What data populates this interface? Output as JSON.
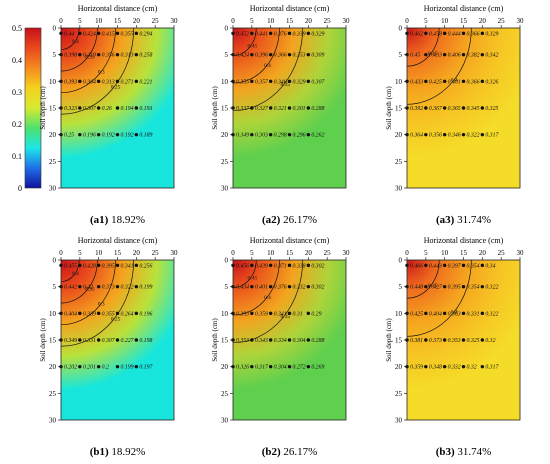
{
  "colorbar": {
    "ticks": [
      "0.5",
      "0.4",
      "0.3",
      "0.2",
      "0.1",
      "0"
    ],
    "ylabel": "Soil depth  (cm)",
    "stops": [
      "#c8101a",
      "#e8491c",
      "#f58a1f",
      "#f5d21e",
      "#d6ea33",
      "#4fe16c",
      "#1ce6e6",
      "#1f6fe9",
      "#12139c"
    ]
  },
  "chart_data": [
    {
      "type": "heatmap",
      "id": "a1",
      "title": "Horizontal distance  (cm)",
      "ylabel": "Soil depth  (cm)",
      "caption_tag": "(a1)",
      "caption_value": "18.92%",
      "xticks": [
        "0",
        "5",
        "10",
        "15",
        "20",
        "25",
        "30"
      ],
      "yticks": [
        "0",
        "5",
        "10",
        "15",
        "20",
        "25",
        "30"
      ],
      "xlim": [
        0,
        30
      ],
      "ylim": [
        0,
        30
      ],
      "background": "#18e6dc",
      "contour_levels": [
        "0.4",
        "0.35",
        "0.3",
        "0.25"
      ],
      "x": [
        0,
        5,
        10,
        15,
        20
      ],
      "depths": [
        1,
        5,
        10,
        15,
        20
      ],
      "values": [
        [
          "0.44",
          "0.424",
          "0.415",
          "0.355",
          "0.294"
        ],
        [
          "0.398",
          "0.419",
          "0.356",
          "0.313",
          "0.258"
        ],
        [
          "0.393",
          "0.364",
          "0.313",
          "0.271",
          "0.221"
        ],
        [
          "0.323",
          "0.307",
          "0.26",
          "0.194",
          "0.193"
        ],
        [
          "0.25",
          "0.196",
          "0.192",
          "0.192",
          "0.189"
        ]
      ]
    },
    {
      "type": "heatmap",
      "id": "a2",
      "title": "Horizontal distance  (cm)",
      "ylabel": "Soil depth  (cm)",
      "caption_tag": "(a2)",
      "caption_value": "26.17%",
      "xticks": [
        "0",
        "5",
        "10",
        "15",
        "20",
        "25",
        "30"
      ],
      "yticks": [
        "0",
        "5",
        "10",
        "15",
        "20",
        "25",
        "30"
      ],
      "xlim": [
        0,
        30
      ],
      "ylim": [
        0,
        30
      ],
      "background": "#5ed04e",
      "contour_levels": [
        "0.45",
        "0.4",
        "0.35"
      ],
      "x": [
        0,
        5,
        10,
        15,
        20
      ],
      "depths": [
        1,
        5,
        10,
        15,
        20
      ],
      "values": [
        [
          "0.452",
          "0.441",
          "0.376",
          "0.339",
          "0.329"
        ],
        [
          "0.424",
          "0.396",
          "0.366",
          "0.353",
          "0.309"
        ],
        [
          "0.355",
          "0.357",
          "0.346",
          "0.329",
          "0.307"
        ],
        [
          "0.337",
          "0.327",
          "0.321",
          "0.301",
          "0.288"
        ],
        [
          "0.349",
          "0.303",
          "0.298",
          "0.296",
          "0.262"
        ]
      ]
    },
    {
      "type": "heatmap",
      "id": "a3",
      "title": "Horizontal distance  (cm)",
      "ylabel": "Soil depth  (cm)",
      "caption_tag": "(a3)",
      "caption_value": "31.74%",
      "xticks": [
        "0",
        "5",
        "10",
        "15",
        "20",
        "25",
        "30"
      ],
      "yticks": [
        "0",
        "5",
        "10",
        "15",
        "20",
        "25",
        "30"
      ],
      "xlim": [
        0,
        30
      ],
      "ylim": [
        0,
        30
      ],
      "background": "#f5dc28",
      "contour_levels": [
        "0.45",
        "0.4"
      ],
      "x": [
        0,
        5,
        10,
        15,
        20
      ],
      "depths": [
        1,
        5,
        10,
        15,
        20
      ],
      "values": [
        [
          "0.462",
          "0.458",
          "0.444",
          "0.366",
          "0.329"
        ],
        [
          "0.45",
          "0.433",
          "0.406",
          "0.382",
          "0.342"
        ],
        [
          "0.433",
          "0.425",
          "0.401",
          "0.366",
          "0.326"
        ],
        [
          "0.392",
          "0.367",
          "0.365",
          "0.345",
          "0.325"
        ],
        [
          "0.364",
          "0.356",
          "0.346",
          "0.322",
          "0.317"
        ]
      ]
    },
    {
      "type": "heatmap",
      "id": "b1",
      "title": "Horizontal distance  (cm)",
      "ylabel": "Soil depth  (cm)",
      "caption_tag": "(b1)",
      "caption_value": "18.92%",
      "xticks": [
        "0",
        "5",
        "10",
        "15",
        "20",
        "25",
        "30"
      ],
      "yticks": [
        "0",
        "5",
        "10",
        "15",
        "20",
        "25",
        "30"
      ],
      "xlim": [
        0,
        30
      ],
      "ylim": [
        0,
        30
      ],
      "background": "#18e6dc",
      "contour_levels": [
        "0.4",
        "0.35",
        "0.3",
        "0.25"
      ],
      "x": [
        0,
        5,
        10,
        15,
        20
      ],
      "depths": [
        1,
        5,
        10,
        15,
        20
      ],
      "values": [
        [
          "0.455",
          "0.428",
          "0.395",
          "0.341",
          "0.256"
        ],
        [
          "0.442",
          "0.42",
          "0.373",
          "0.322",
          "0.199"
        ],
        [
          "0.404",
          "0.389",
          "0.355",
          "0.264",
          "0.196"
        ],
        [
          "0.349",
          "0.331",
          "0.307",
          "0.227",
          "0.198"
        ],
        [
          "0.202",
          "0.201",
          "0.2",
          "0.199",
          "0.197"
        ]
      ]
    },
    {
      "type": "heatmap",
      "id": "b2",
      "title": "Horizontal distance  (cm)",
      "ylabel": "Soil depth  (cm)",
      "caption_tag": "(b2)",
      "caption_value": "26.17%",
      "xticks": [
        "0",
        "5",
        "10",
        "15",
        "20",
        "25",
        "30"
      ],
      "yticks": [
        "0",
        "5",
        "10",
        "15",
        "20",
        "25",
        "30"
      ],
      "xlim": [
        0,
        30
      ],
      "ylim": [
        0,
        30
      ],
      "background": "#5ed04e",
      "contour_levels": [
        "0.45",
        "0.4",
        "0.35"
      ],
      "x": [
        0,
        5,
        10,
        15,
        20
      ],
      "depths": [
        1,
        5,
        10,
        15,
        20
      ],
      "values": [
        [
          "0.456",
          "0.439",
          "0.371",
          "0.338",
          "0.302"
        ],
        [
          "0.434",
          "0.401",
          "0.376",
          "0.332",
          "0.302"
        ],
        [
          "0.393",
          "0.359",
          "0.341",
          "0.31",
          "0.29"
        ],
        [
          "0.353",
          "0.343",
          "0.334",
          "0.304",
          "0.288"
        ],
        [
          "0.326",
          "0.317",
          "0.304",
          "0.272",
          "0.269"
        ]
      ]
    },
    {
      "type": "heatmap",
      "id": "b3",
      "title": "Horizontal distance  (cm)",
      "ylabel": "Soil depth  (cm)",
      "caption_tag": "(b3)",
      "caption_value": "31.74%",
      "xticks": [
        "0",
        "5",
        "10",
        "15",
        "20",
        "25",
        "30"
      ],
      "yticks": [
        "0",
        "5",
        "10",
        "15",
        "20",
        "25",
        "30"
      ],
      "xlim": [
        0,
        30
      ],
      "ylim": [
        0,
        30
      ],
      "background": "#f5dc28",
      "contour_levels": [
        "0.45",
        "0.4"
      ],
      "x": [
        0,
        5,
        10,
        15,
        20
      ],
      "depths": [
        1,
        5,
        10,
        15,
        20
      ],
      "values": [
        [
          "0.466",
          "0.443",
          "0.397",
          "0.354",
          "0.34"
        ],
        [
          "0.448",
          "0.427",
          "0.395",
          "0.354",
          "0.322"
        ],
        [
          "0.425",
          "0.404",
          "0.363",
          "0.331",
          "0.322"
        ],
        [
          "0.381",
          "0.373",
          "0.353",
          "0.325",
          "0.32"
        ],
        [
          "0.359",
          "0.348",
          "0.332",
          "0.32",
          "0.317"
        ]
      ]
    }
  ]
}
